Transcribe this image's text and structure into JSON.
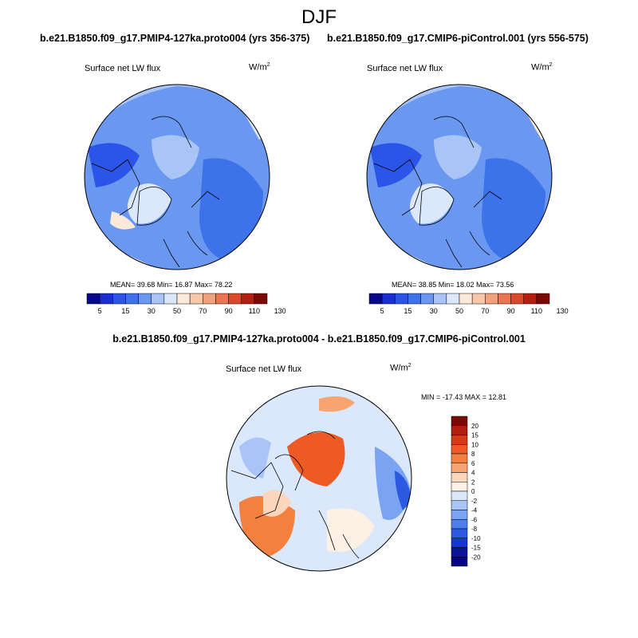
{
  "figure": {
    "season": "DJF",
    "middle_title": "b.e21.B1850.f09_g17.PMIP4-127ka.proto004 - b.e21.B1850.f09_g17.CMIP6-piControl.001"
  },
  "panels": [
    {
      "id": "left",
      "title": "b.e21.B1850.f09_g17.PMIP4-127ka.proto004 (yrs 356-375)",
      "variable": "Surface net LW flux",
      "units_base": "W/m",
      "units_exp": "2",
      "stats_text": "MEAN=  39.68  Min=  16.87  Max=  78.22",
      "colorbar_labels": [
        "5",
        "15",
        "30",
        "50",
        "70",
        "90",
        "110",
        "130"
      ]
    },
    {
      "id": "right",
      "title": "b.e21.B1850.f09_g17.CMIP6-piControl.001 (yrs 556-575)",
      "variable": "Surface net LW flux",
      "units_base": "W/m",
      "units_exp": "2",
      "stats_text": "MEAN=  38.85  Min=  18.02  Max=  73.56",
      "colorbar_labels": [
        "5",
        "15",
        "30",
        "50",
        "70",
        "90",
        "110",
        "130"
      ]
    }
  ],
  "diff_panel": {
    "variable": "Surface net LW flux",
    "units_base": "W/m",
    "units_exp": "2",
    "minmax_text": "MIN = -17.43 MAX =  12.81",
    "colorbar_labels": [
      "20",
      "15",
      "10",
      "8",
      "6",
      "4",
      "2",
      "0",
      "-2",
      "-4",
      "-6",
      "-8",
      "-10",
      "-15",
      "-20"
    ]
  },
  "colors": {
    "abs_scale": [
      "#08088a",
      "#1a2fd0",
      "#2b55e6",
      "#3d72ea",
      "#6a98f0",
      "#a9c4f7",
      "#dbe8fb",
      "#fde9da",
      "#f9c7aa",
      "#f3a07c",
      "#ea7550",
      "#d94a2a",
      "#b32012",
      "#7a0a05"
    ],
    "diff_scale": [
      "#7a0a05",
      "#ae1f0c",
      "#d63a15",
      "#ee5a24",
      "#f3803f",
      "#f6a570",
      "#fbd6bd",
      "#fdf0e4",
      "#dbe8fb",
      "#a9c4f7",
      "#7aa4f1",
      "#4d7fea",
      "#2b59e2",
      "#1636cc",
      "#0a139a",
      "#050580"
    ]
  }
}
